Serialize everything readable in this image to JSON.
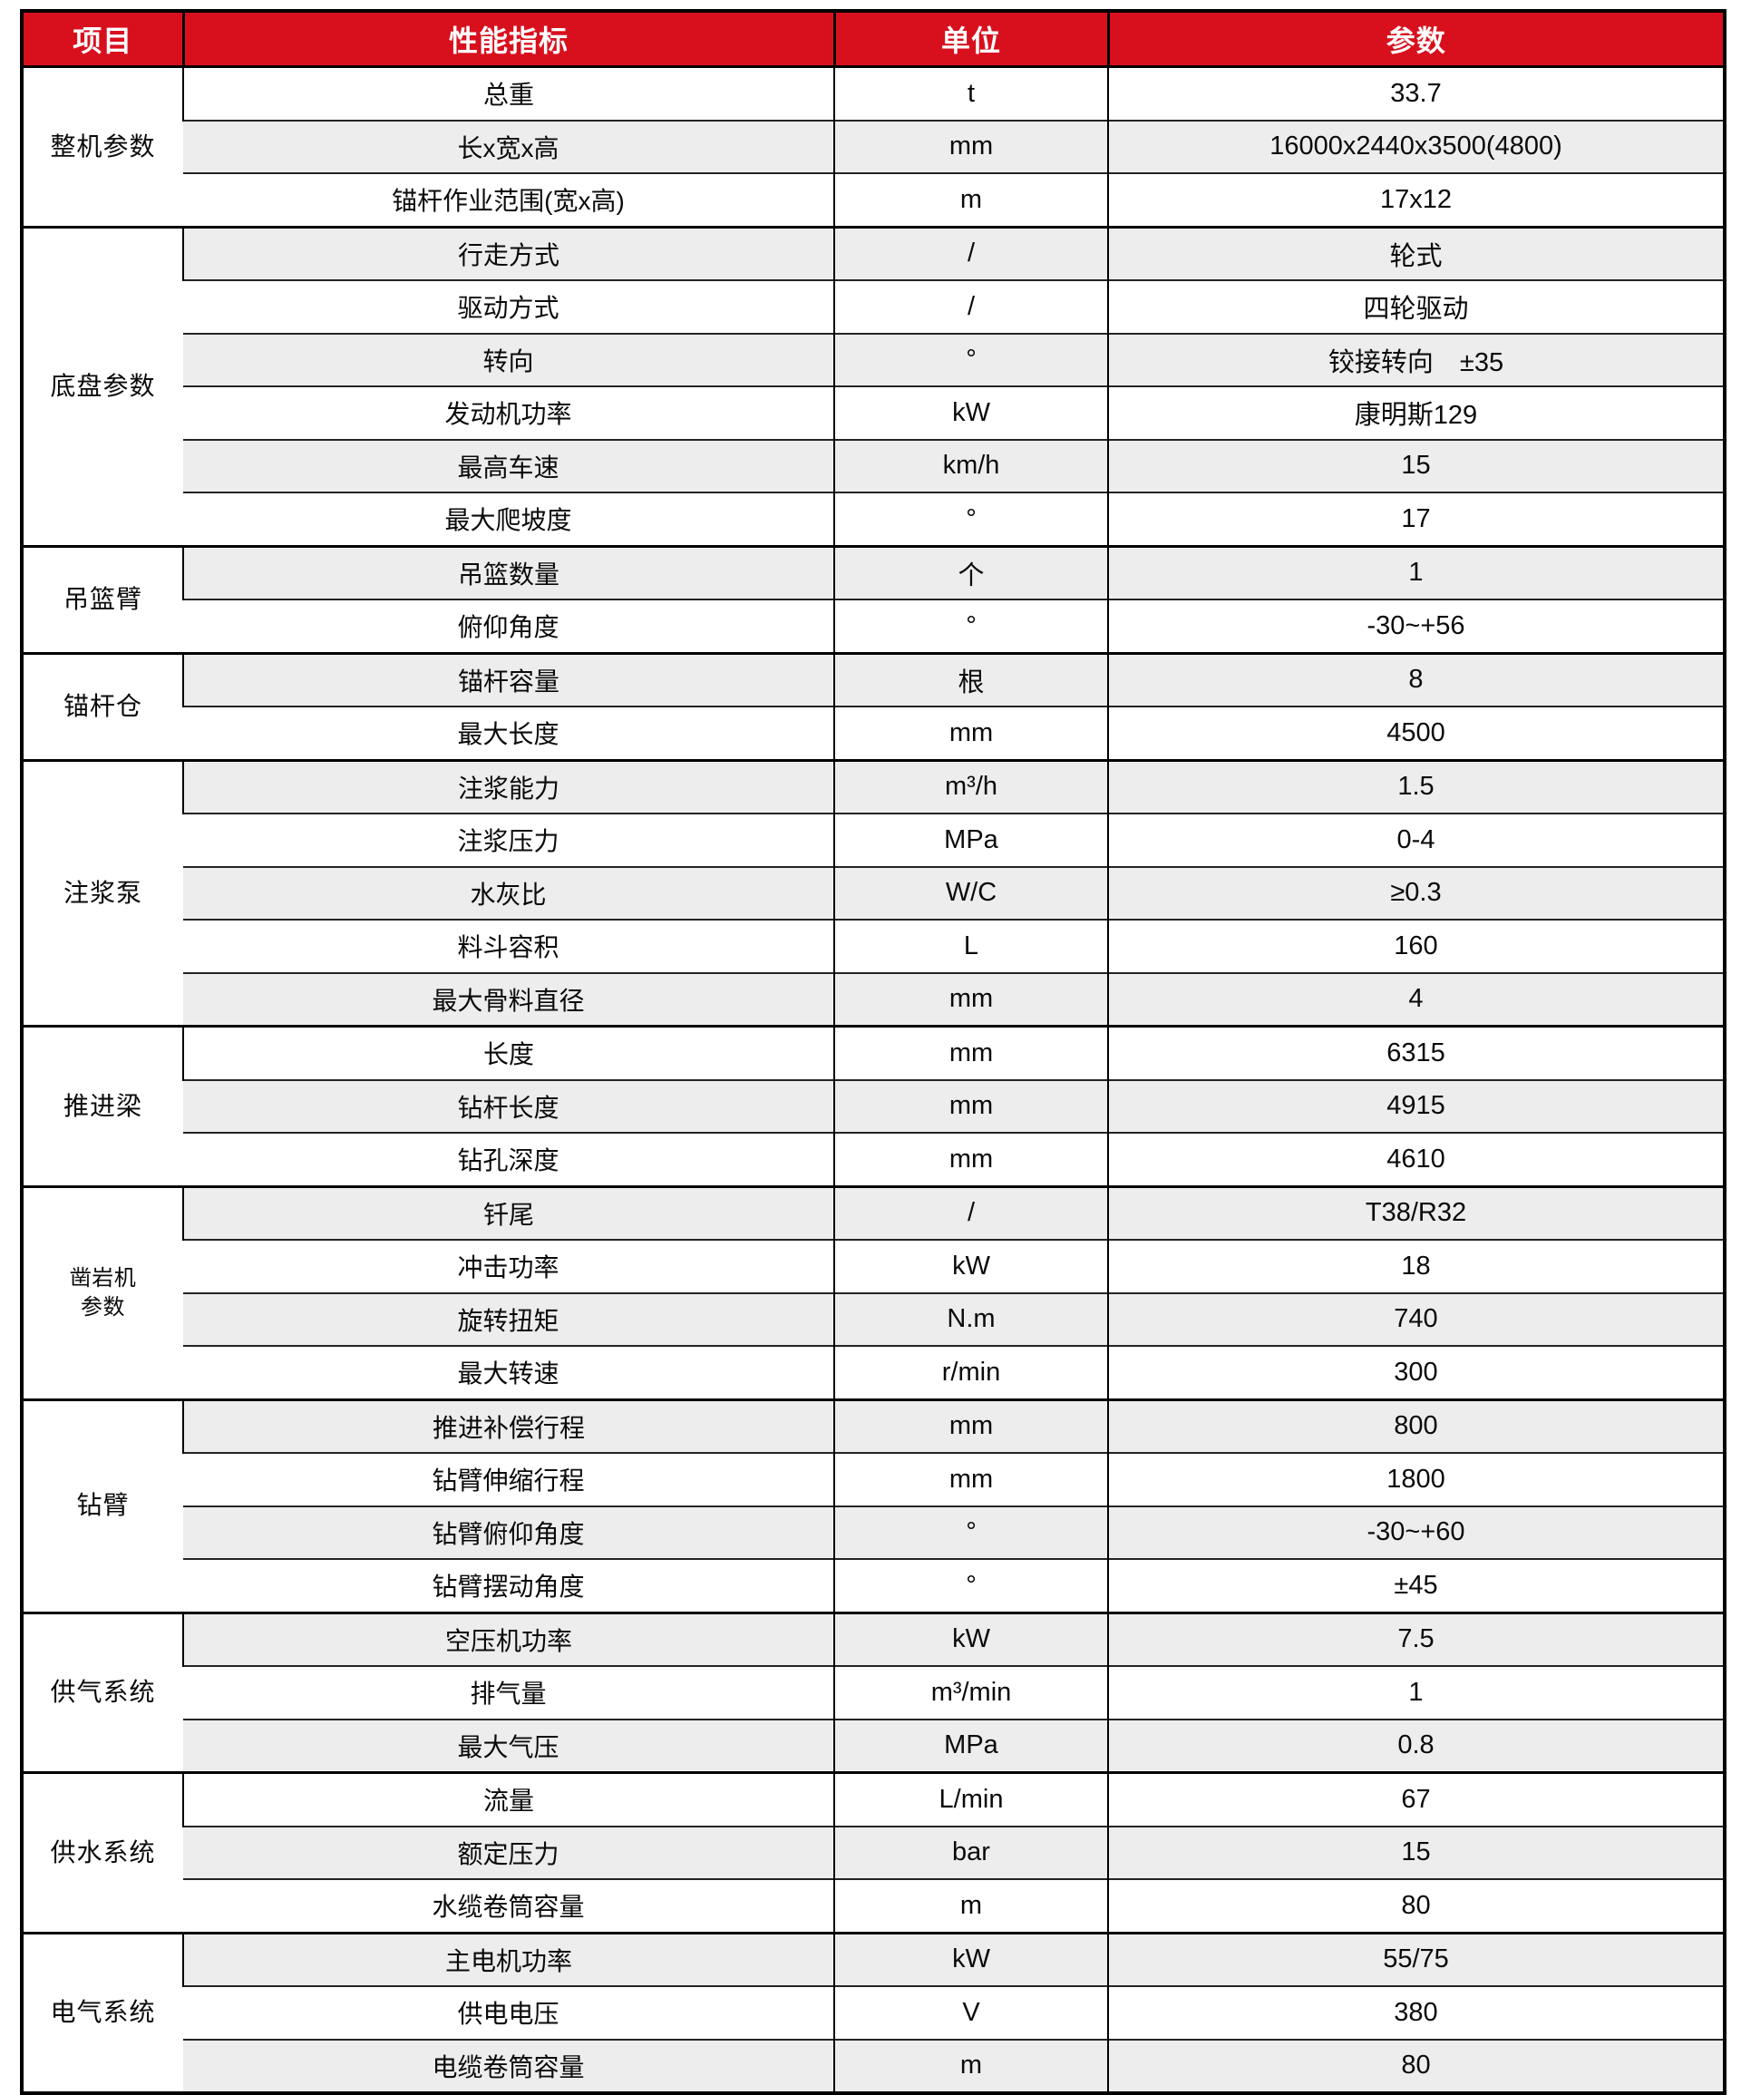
{
  "colors": {
    "header_bg": "#D8101E",
    "header_text": "#FFFFFF",
    "row_alt_bg": "#EDEDED",
    "border": "#000000"
  },
  "table": {
    "headers": [
      "项目",
      "性能指标",
      "单位",
      "参数"
    ],
    "groups": [
      {
        "label": "整机参数",
        "rows": [
          [
            "总重",
            "t",
            "33.7"
          ],
          [
            "长x宽x高",
            "mm",
            "16000x2440x3500(4800)"
          ],
          [
            "锚杆作业范围(宽x高)",
            "m",
            "17x12"
          ]
        ]
      },
      {
        "label": "底盘参数",
        "rows": [
          [
            "行走方式",
            "/",
            "轮式"
          ],
          [
            "驱动方式",
            "/",
            "四轮驱动"
          ],
          [
            "转向",
            "°",
            "铰接转向　±35"
          ],
          [
            "发动机功率",
            "kW",
            "康明斯129"
          ],
          [
            "最高车速",
            "km/h",
            "15"
          ],
          [
            "最大爬坡度",
            "°",
            "17"
          ]
        ]
      },
      {
        "label": "吊篮臂",
        "rows": [
          [
            "吊篮数量",
            "个",
            "1"
          ],
          [
            "俯仰角度",
            "°",
            "-30~+56"
          ]
        ]
      },
      {
        "label": "锚杆仓",
        "rows": [
          [
            "锚杆容量",
            "根",
            "8"
          ],
          [
            "最大长度",
            "mm",
            "4500"
          ]
        ]
      },
      {
        "label": "注浆泵",
        "rows": [
          [
            "注浆能力",
            "m³/h",
            "1.5"
          ],
          [
            "注浆压力",
            "MPa",
            "0-4"
          ],
          [
            "水灰比",
            "W/C",
            "≥0.3"
          ],
          [
            "料斗容积",
            "L",
            "160"
          ],
          [
            "最大骨料直径",
            "mm",
            "4"
          ]
        ]
      },
      {
        "label": "推进梁",
        "rows": [
          [
            "长度",
            "mm",
            "6315"
          ],
          [
            "钻杆长度",
            "mm",
            "4915"
          ],
          [
            "钻孔深度",
            "mm",
            "4610"
          ]
        ]
      },
      {
        "label": "凿岩机\n参数",
        "small": true,
        "rows": [
          [
            "钎尾",
            "/",
            "T38/R32"
          ],
          [
            "冲击功率",
            "kW",
            "18"
          ],
          [
            "旋转扭矩",
            "N.m",
            "740"
          ],
          [
            "最大转速",
            "r/min",
            "300"
          ]
        ]
      },
      {
        "label": "钻臂",
        "rows": [
          [
            "推进补偿行程",
            "mm",
            "800"
          ],
          [
            "钻臂伸缩行程",
            "mm",
            "1800"
          ],
          [
            "钻臂俯仰角度",
            "°",
            "-30~+60"
          ],
          [
            "钻臂摆动角度",
            "°",
            "±45"
          ]
        ]
      },
      {
        "label": "供气系统",
        "rows": [
          [
            "空压机功率",
            "kW",
            "7.5"
          ],
          [
            "排气量",
            "m³/min",
            "1"
          ],
          [
            "最大气压",
            "MPa",
            "0.8"
          ]
        ]
      },
      {
        "label": "供水系统",
        "rows": [
          [
            "流量",
            "L/min",
            "67"
          ],
          [
            "额定压力",
            "bar",
            "15"
          ],
          [
            "水缆卷筒容量",
            "m",
            "80"
          ]
        ]
      },
      {
        "label": "电气系统",
        "rows": [
          [
            "主电机功率",
            "kW",
            "55/75"
          ],
          [
            "供电电压",
            "V",
            "380"
          ],
          [
            "电缆卷筒容量",
            "m",
            "80"
          ]
        ]
      }
    ]
  }
}
